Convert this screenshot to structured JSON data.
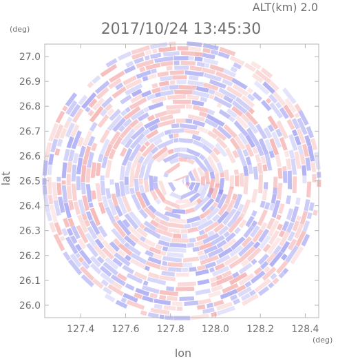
{
  "header": {
    "altitude_label": "ALT(km) 2.0",
    "timestamp": "2017/10/24 13:45:30"
  },
  "chart_data": {
    "type": "heatmap",
    "title": "2017/10/24 13:45:30",
    "subtitle": "ALT(km) 2.0",
    "xlabel": "lon",
    "ylabel": "lat",
    "x_unit": "(deg)",
    "y_unit": "(deg)",
    "xlim": [
      127.24,
      128.46
    ],
    "ylim": [
      25.95,
      27.05
    ],
    "x_ticks": [
      {
        "value": 127.4,
        "label": "127.4"
      },
      {
        "value": 127.6,
        "label": "127.6"
      },
      {
        "value": 127.8,
        "label": "127.8"
      },
      {
        "value": 128.0,
        "label": "128.0"
      },
      {
        "value": 128.2,
        "label": "128.2"
      },
      {
        "value": 128.4,
        "label": "128.4"
      }
    ],
    "y_ticks": [
      {
        "value": 26.0,
        "label": "26.0"
      },
      {
        "value": 26.1,
        "label": "26.1"
      },
      {
        "value": 26.2,
        "label": "26.2"
      },
      {
        "value": 26.3,
        "label": "26.3"
      },
      {
        "value": 26.4,
        "label": "26.4"
      },
      {
        "value": 26.5,
        "label": "26.5"
      },
      {
        "value": 26.6,
        "label": "26.6"
      },
      {
        "value": 26.7,
        "label": "26.7"
      },
      {
        "value": 26.8,
        "label": "26.8"
      },
      {
        "value": 26.9,
        "label": "26.9"
      },
      {
        "value": 27.0,
        "label": "27.0"
      }
    ],
    "center": {
      "lon": 127.85,
      "lat": 26.5
    },
    "field_radius_deg_lat": 0.55,
    "colormap": {
      "negative": "#8c8cf0",
      "zero": "#ffffff",
      "positive": "#f29a9a"
    },
    "grid": false,
    "legend": "none"
  }
}
